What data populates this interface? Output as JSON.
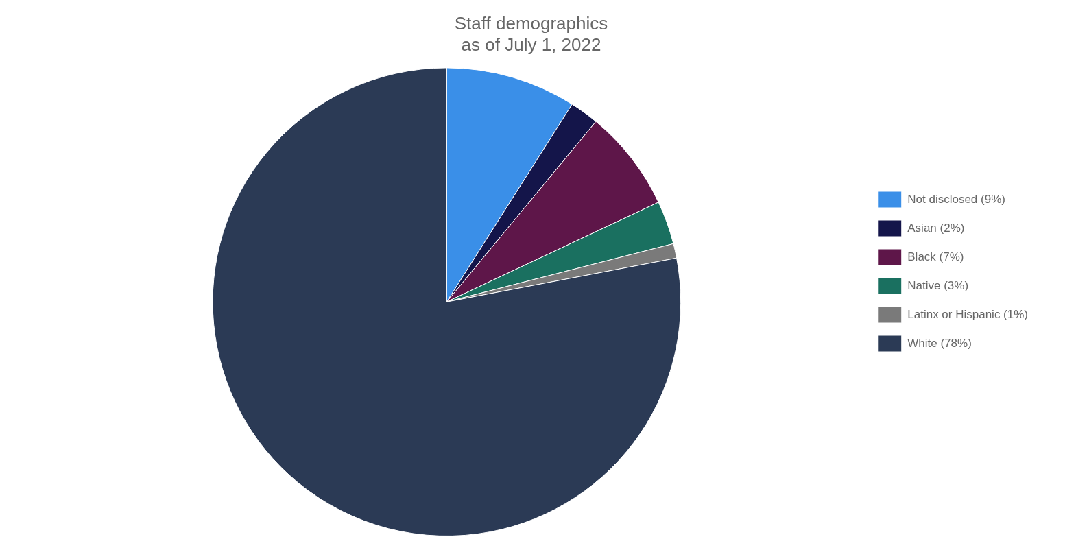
{
  "chart_data": {
    "type": "pie",
    "title": "Staff demographics\nas of July 1, 2022",
    "categories": [
      "Not disclosed (9%)",
      "Asian (2%)",
      "Black (7%)",
      "Native (3%)",
      "Latinx or Hispanic (1%)",
      "White (78%)"
    ],
    "values": [
      9,
      2,
      7,
      3,
      1,
      78
    ],
    "colors": [
      "#3a8fe8",
      "#14154a",
      "#5e1649",
      "#1a7060",
      "#7a7a7a",
      "#2b3a55"
    ],
    "legend": "right"
  }
}
